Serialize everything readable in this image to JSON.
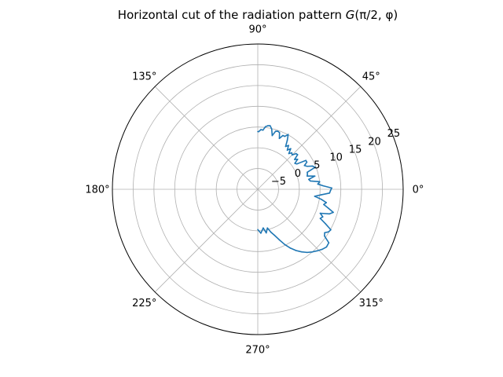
{
  "chart_data": {
    "type": "line",
    "projection": "polar",
    "title": "Horizontal cut of the radiation pattern G(π/2, φ)",
    "title_parts": {
      "prefix": "Horizontal cut of the radiation pattern ",
      "func": "G",
      "args": "(π/2, φ)"
    },
    "theta_unit": "degrees",
    "theta_ticks": [
      0,
      45,
      90,
      135,
      180,
      225,
      270,
      315
    ],
    "theta_tick_labels": [
      "0°",
      "45°",
      "90°",
      "135°",
      "180°",
      "225°",
      "270°",
      "315°"
    ],
    "r_ticks": [
      -5,
      0,
      5,
      10,
      15,
      20,
      25
    ],
    "r_tick_labels": [
      "−5",
      "0",
      "5",
      "10",
      "15",
      "20",
      "25"
    ],
    "rlim": [
      -10,
      25
    ],
    "r_label_angle_deg": 22.5,
    "grid": true,
    "line_color": "#1f77b4",
    "series": [
      {
        "theta_deg": [
          -90,
          -86,
          -82,
          -79,
          -76,
          -73,
          -70,
          -67,
          -64,
          -61,
          -58,
          -55,
          -52,
          -49,
          -46,
          -43,
          -40,
          -37,
          -35,
          -33,
          -31,
          -29,
          -27,
          -25,
          -23,
          -21,
          -19,
          -17,
          -15,
          -13,
          -11,
          -9,
          -7,
          -5,
          -3,
          -1,
          1,
          3,
          5,
          7,
          9,
          11,
          13,
          15,
          17,
          19,
          21,
          23,
          25,
          27,
          29,
          31,
          33,
          35,
          37,
          39,
          41,
          43,
          45,
          47,
          49,
          51,
          53,
          55,
          57,
          59,
          61,
          63,
          65,
          67,
          69,
          71,
          73,
          75,
          77,
          79,
          81,
          83,
          85,
          87,
          89,
          90
        ],
        "r": [
          -0.3,
          0.6,
          -0.6,
          0.7,
          -0.4,
          0.8,
          1.8,
          3.2,
          4.8,
          6.2,
          7.4,
          8.4,
          9.3,
          10.0,
          10.6,
          11.2,
          11.6,
          11.4,
          9.6,
          9.2,
          9.9,
          10.1,
          8.3,
          6.6,
          7.0,
          6.1,
          8.2,
          9.0,
          7.6,
          6.3,
          6.8,
          5.5,
          3.8,
          5.3,
          7.3,
          7.5,
          7.8,
          5.8,
          4.5,
          5.0,
          2.8,
          2.5,
          4.1,
          2.3,
          2.5,
          2.6,
          4.8,
          4.3,
          3.1,
          2.6,
          3.5,
          3.5,
          1.2,
          0.9,
          2.0,
          1.4,
          2.7,
          2.6,
          1.7,
          2.0,
          1.4,
          2.6,
          1.8,
          2.9,
          2.3,
          3.8,
          5.1,
          4.3,
          4.3,
          3.3,
          4.6,
          4.8,
          4.6,
          3.4,
          4.9,
          5.6,
          5.5,
          5.2,
          4.3,
          4.4,
          3.9,
          3.9
        ]
      }
    ]
  }
}
